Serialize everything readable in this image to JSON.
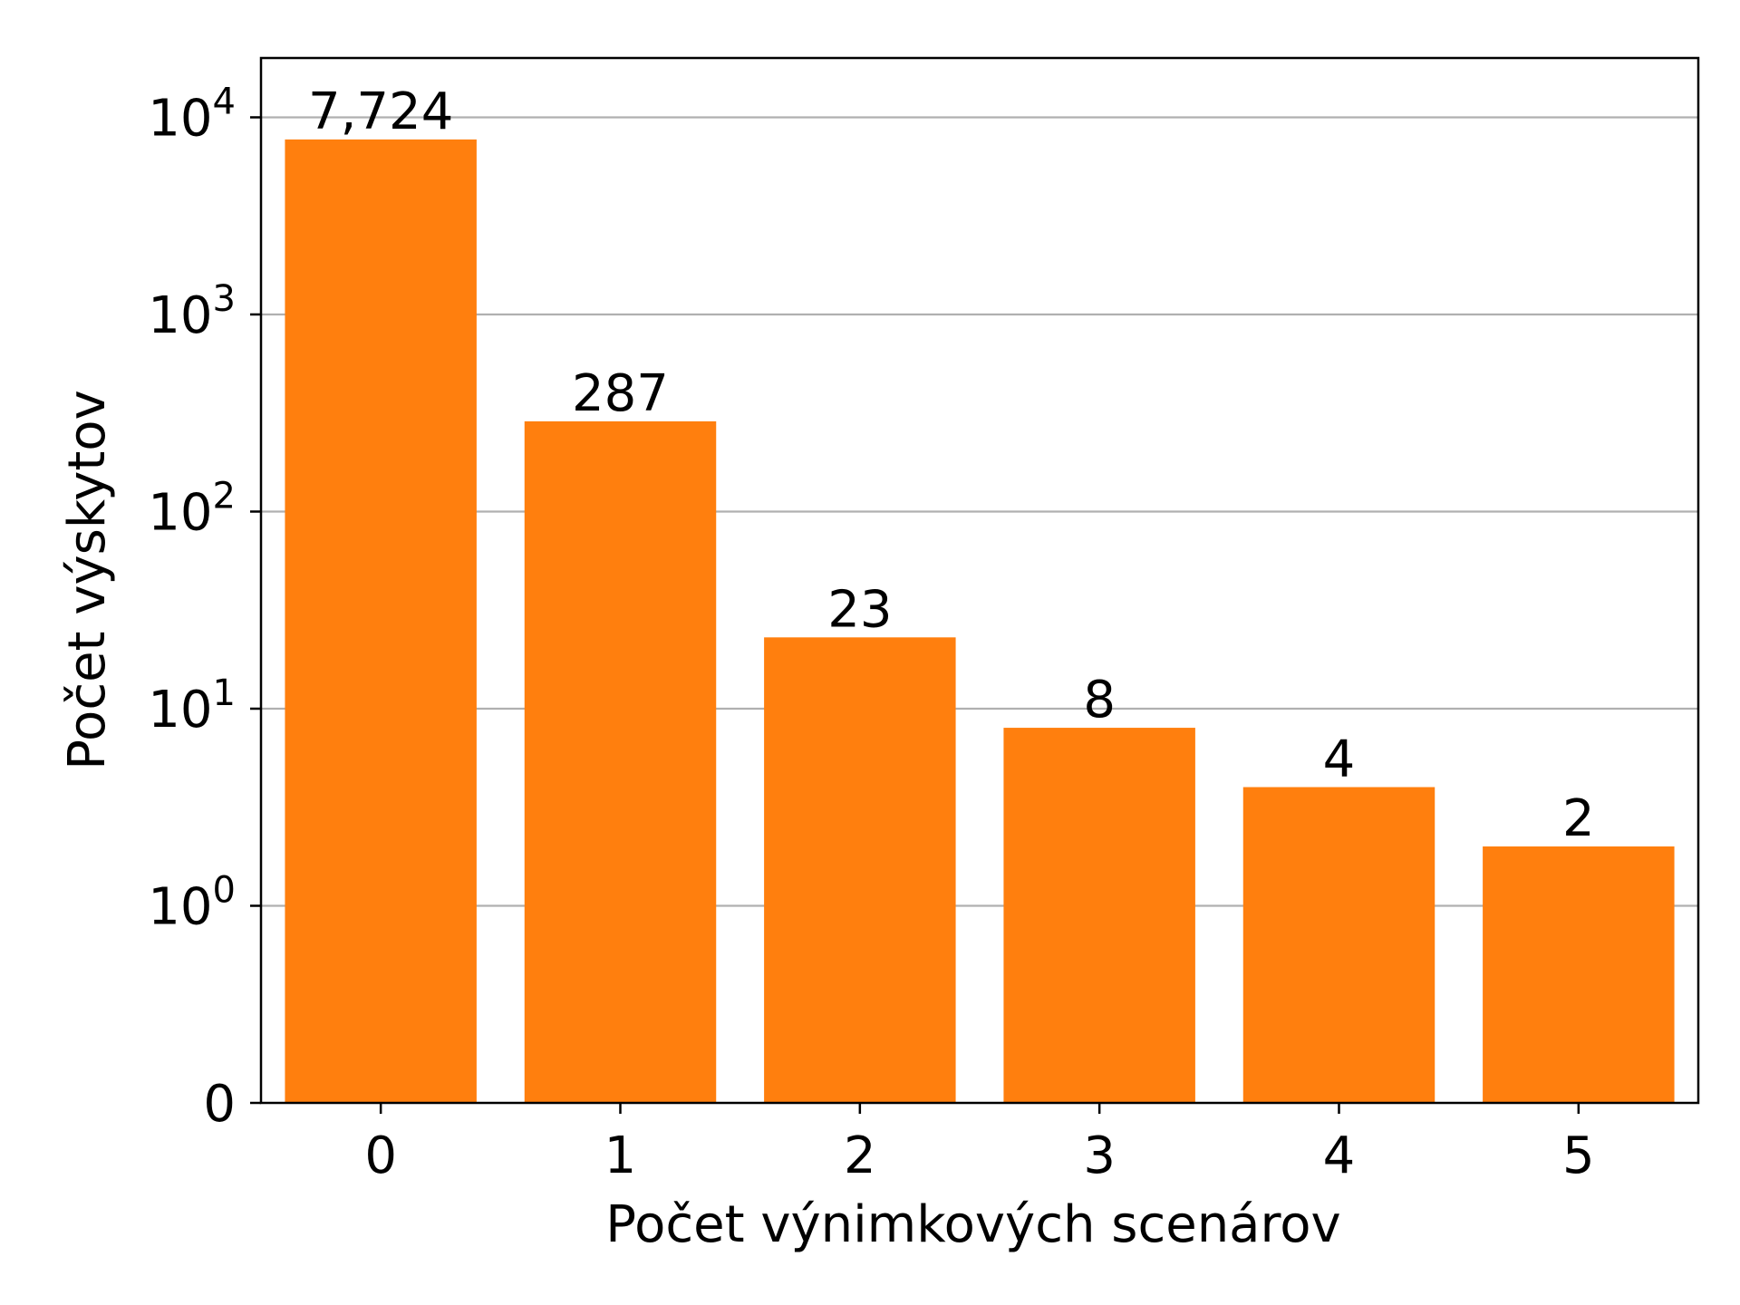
{
  "chart_data": {
    "type": "bar",
    "categories": [
      "0",
      "1",
      "2",
      "3",
      "4",
      "5"
    ],
    "values": [
      7724,
      287,
      23,
      8,
      4,
      2
    ],
    "data_labels": [
      "7,724",
      "287",
      "23",
      "8",
      "4",
      "2"
    ],
    "title": "",
    "xlabel": "Počet výnimkových scenárov",
    "ylabel": "Počet výskytov",
    "yscale": "symlog",
    "ylim": [
      0,
      20000
    ],
    "yticks": [
      {
        "value": 0,
        "base": "0",
        "exp": ""
      },
      {
        "value": 1,
        "base": "10",
        "exp": "0"
      },
      {
        "value": 10,
        "base": "10",
        "exp": "1"
      },
      {
        "value": 100,
        "base": "10",
        "exp": "2"
      },
      {
        "value": 1000,
        "base": "10",
        "exp": "3"
      },
      {
        "value": 10000,
        "base": "10",
        "exp": "4"
      }
    ],
    "grid": "y",
    "legend": "none",
    "colors": {
      "bar": "#ff7f0e",
      "grid": "#b0b0b0",
      "axis": "#000000"
    }
  }
}
